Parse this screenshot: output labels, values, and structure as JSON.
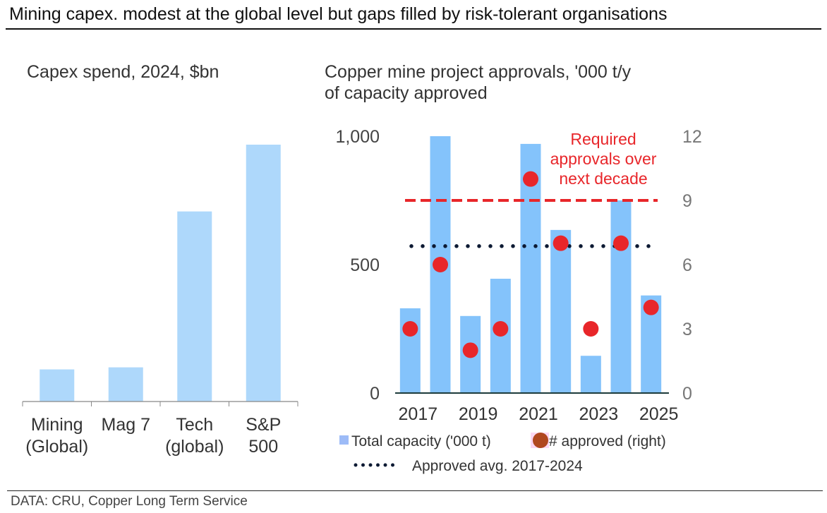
{
  "title": "Mining capex. modest at the global level but gaps filled by risk-tolerant organisations",
  "source": "DATA: CRU, Copper Long Term Service",
  "colors": {
    "bar_left": "#aed8fb",
    "bar_right": "#84c3fb",
    "dot": "#e8262a",
    "required_line": "#e8262a",
    "avg_line": "#0d1a33"
  },
  "chart_data": [
    {
      "type": "bar",
      "title": "Capex spend, 2024, $bn",
      "categories": [
        [
          "Mining",
          "(Global)"
        ],
        [
          "Mag 7"
        ],
        [
          "Tech",
          "(global)"
        ],
        [
          "S&P",
          "500"
        ]
      ],
      "category_names": [
        "Mining (Global)",
        "Mag 7",
        "Tech (global)",
        "S&P 500"
      ],
      "values": [
        125,
        133,
        740,
        1000
      ],
      "xlabel": "",
      "ylabel": "",
      "ylim": [
        0,
        1030
      ],
      "y_axis_shown": false,
      "grid": false,
      "note": "values estimated from relative bar heights; no y-axis shown"
    },
    {
      "type": "bar",
      "title_lines": [
        "Copper mine project approvals, '000 t/y",
        "of capacity approved"
      ],
      "categories": [
        "2017",
        "2018",
        "2019",
        "2020",
        "2021",
        "2022",
        "2023",
        "2024",
        "2025"
      ],
      "x_tick_labels": [
        "2017",
        "2019",
        "2021",
        "2023",
        "2025"
      ],
      "series": [
        {
          "name": "Total capacity ('000 t)",
          "axis": "left",
          "kind": "bar",
          "values": [
            330,
            1000,
            300,
            445,
            970,
            635,
            145,
            750,
            380
          ]
        },
        {
          "name": "# approved (right)",
          "axis": "right",
          "kind": "scatter",
          "values": [
            3,
            6,
            2,
            3,
            10,
            7,
            3,
            7,
            4
          ]
        }
      ],
      "reference_lines": [
        {
          "name": "Required approvals over next decade",
          "axis": "right",
          "value": 9,
          "style": "dashed"
        },
        {
          "name": "Approved avg. 2017-2024",
          "axis": "left",
          "value": 572,
          "style": "dotted"
        }
      ],
      "annotation": [
        "Required",
        "approvals over",
        "next decade"
      ],
      "left_axis": {
        "ylim": [
          0,
          1000
        ],
        "ticks": [
          0,
          500,
          1000
        ],
        "tick_labels": [
          "0",
          "500",
          "1,000"
        ]
      },
      "right_axis": {
        "ylim": [
          0,
          12
        ],
        "ticks": [
          0,
          3,
          6,
          9,
          12
        ],
        "tick_labels": [
          "0",
          "3",
          "6",
          "9",
          "12"
        ]
      },
      "legend": {
        "placement": "bottom",
        "entries": [
          "Total capacity ('000 t)",
          "# approved (right)",
          "Approved avg. 2017-2024"
        ]
      },
      "grid": false
    }
  ]
}
